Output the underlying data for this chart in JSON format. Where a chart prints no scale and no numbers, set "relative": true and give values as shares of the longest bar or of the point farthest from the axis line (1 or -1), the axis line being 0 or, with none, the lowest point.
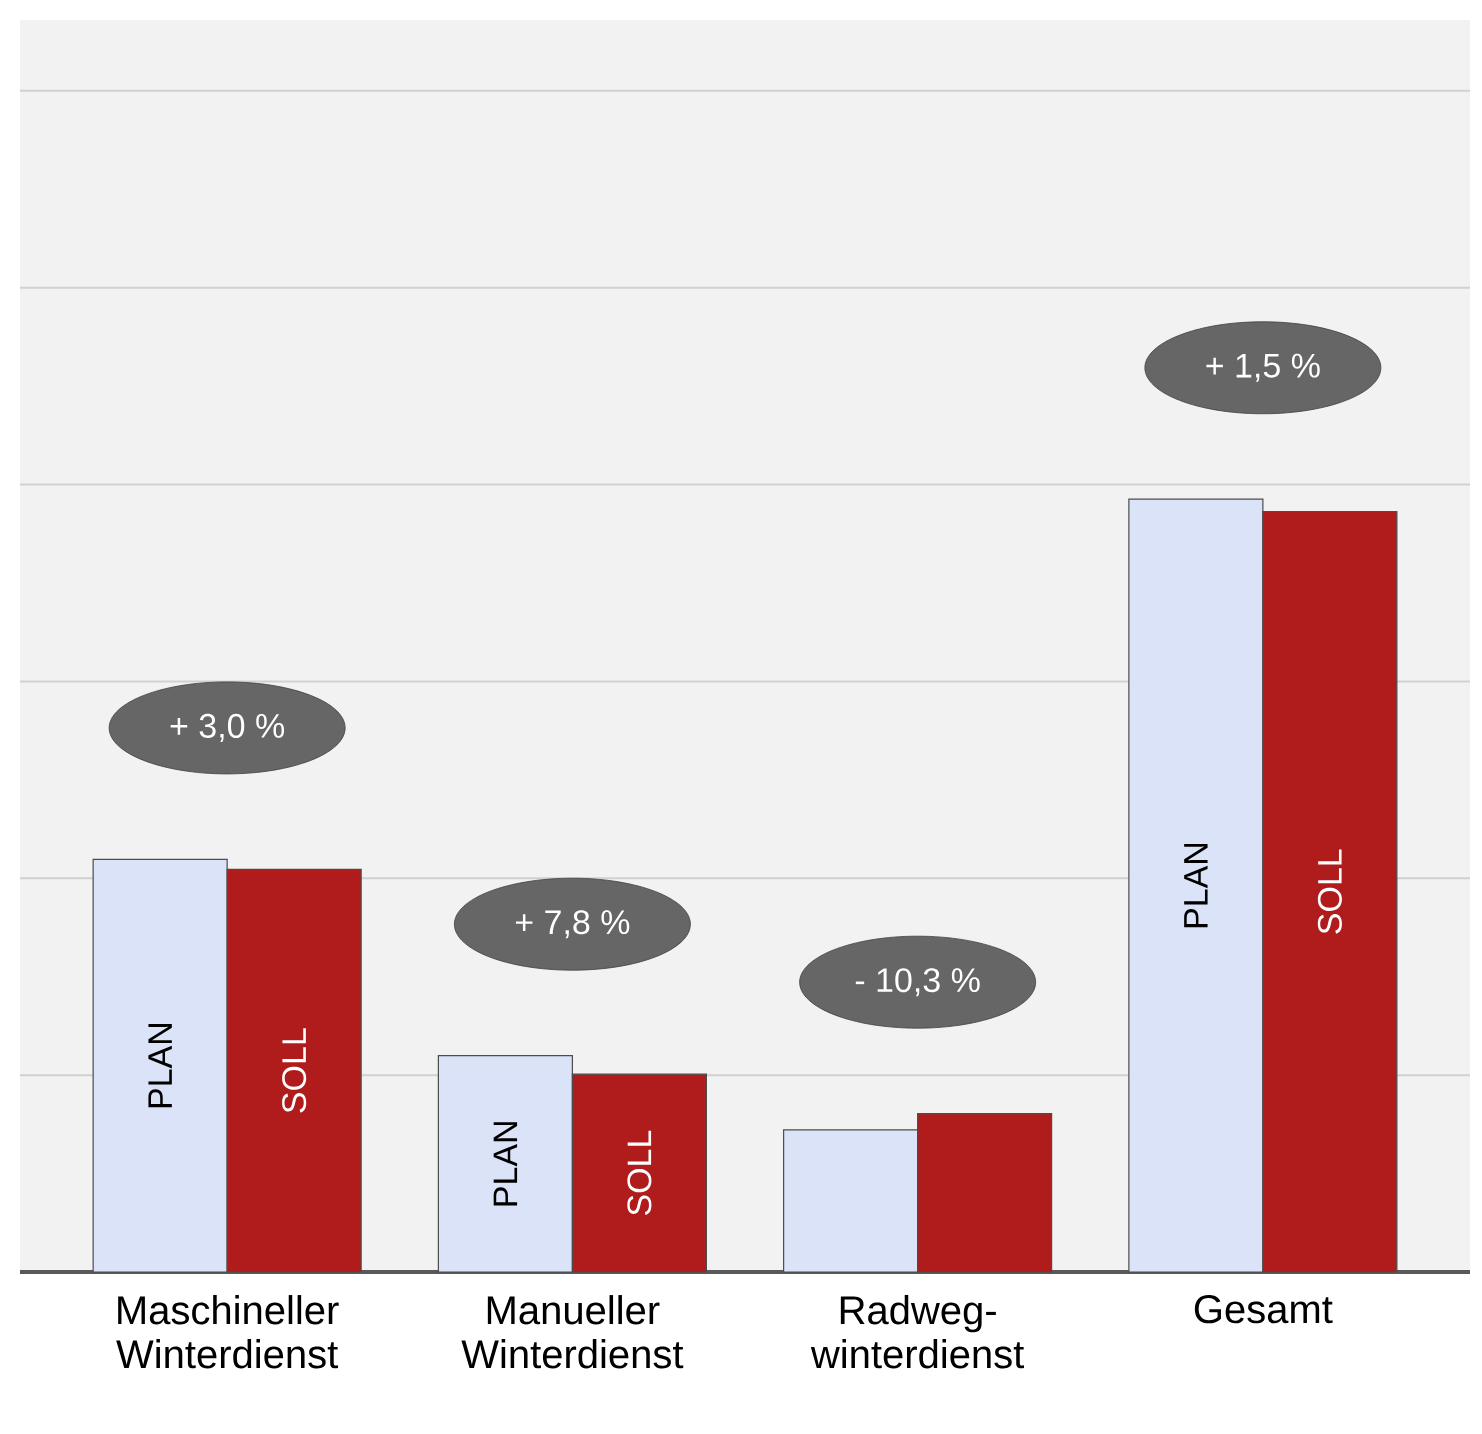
{
  "chart_data": {
    "type": "bar",
    "relative": true,
    "grid": "y",
    "legend": false,
    "categories": [
      "Maschineller Winterdienst",
      "Manueller Winterdienst",
      "Radweg-winterdienst",
      "Gesamt"
    ],
    "series": [
      {
        "name": "PLAN",
        "color": "#dae3f8",
        "values": [
          0.534,
          0.28,
          0.184,
          1
        ]
      },
      {
        "name": "SOLL",
        "color": "#b01c1c",
        "values": [
          0.521,
          0.256,
          0.205,
          0.984
        ]
      }
    ],
    "annotations": [
      "+ 3,0 %",
      "+ 7,8 %",
      "- 10,3 %",
      "+ 1,5 %"
    ]
  }
}
